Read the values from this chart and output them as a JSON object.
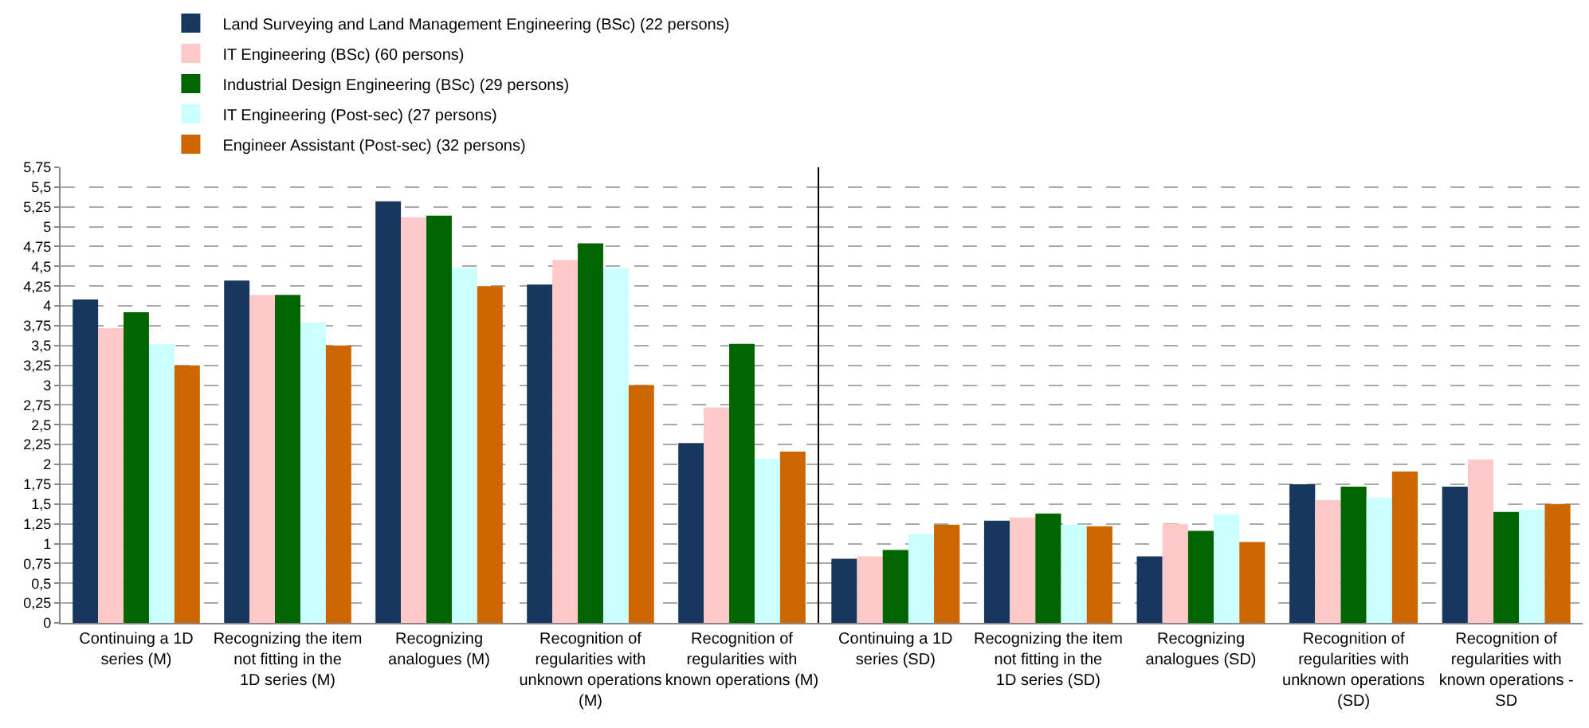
{
  "chart_data": [
    {
      "type": "bar",
      "categories": [
        "Continuing a 1D series (M)",
        "Recognizing the item not fitting in the 1D series (M)",
        "Recognizing analogues (M)",
        "Recognition of regularities with unknown operations (M)",
        "Recognition of regularities with known operations (M)"
      ],
      "series": [
        {
          "name": "Land Surveying and Land Management Engineering (BSc) (22 persons)",
          "color": "#17375e",
          "values": [
            4.08,
            4.32,
            5.32,
            4.27,
            2.27
          ]
        },
        {
          "name": "IT Engineering (BSc) (60 persons)",
          "color": "#ffc9c9",
          "values": [
            3.72,
            4.14,
            5.12,
            4.58,
            2.72
          ]
        },
        {
          "name": "Industrial Design Engineering (BSc) (29 persons)",
          "color": "#006400",
          "values": [
            3.92,
            4.14,
            5.14,
            4.79,
            3.52
          ]
        },
        {
          "name": "IT Engineering (Post-sec) (27 persons)",
          "color": "#ccffff",
          "values": [
            3.52,
            3.79,
            4.48,
            4.48,
            2.07
          ]
        },
        {
          "name": "Engineer Assistant (Post-sec) (32 persons)",
          "color": "#cc6600",
          "values": [
            3.25,
            3.5,
            4.25,
            3.0,
            2.16
          ]
        }
      ],
      "ylim": [
        0,
        5.75
      ],
      "yticks": [
        0,
        {
          "value": 0.25,
          "label": "0,25"
        },
        {
          "value": 0.5,
          "label": "0,5"
        },
        {
          "value": 0.75,
          "label": "0,75"
        },
        1,
        {
          "value": 1.25,
          "label": "1,25"
        },
        {
          "value": 1.5,
          "label": "1,5"
        },
        {
          "value": 1.75,
          "label": "1,75"
        },
        2,
        {
          "value": 2.25,
          "label": "2,25"
        },
        {
          "value": 2.5,
          "label": "2,5"
        },
        {
          "value": 2.75,
          "label": "2,75"
        },
        3,
        {
          "value": 3.25,
          "label": "3,25"
        },
        {
          "value": 3.5,
          "label": "3,5"
        },
        {
          "value": 3.75,
          "label": "3,75"
        },
        4,
        {
          "value": 4.25,
          "label": "4,25"
        },
        {
          "value": 4.5,
          "label": "4,5"
        },
        {
          "value": 4.75,
          "label": "4,75"
        },
        5,
        {
          "value": 5.25,
          "label": "5,25"
        },
        {
          "value": 5.5,
          "label": "5,5"
        },
        {
          "value": 5.75,
          "label": "5,75"
        }
      ],
      "grid": "y",
      "legend": "top"
    },
    {
      "type": "bar",
      "categories": [
        "Continuing a 1D series (SD)",
        "Recognizing the item not fitting in the 1D series (SD)",
        "Recognizing analogues (SD)",
        "Recognition of regularities with unknown operations (SD)",
        "Recognition of regularities with known operations - SD"
      ],
      "series": [
        {
          "color": "#17375e",
          "values": [
            0.81,
            1.29,
            0.84,
            1.75,
            1.72
          ]
        },
        {
          "color": "#ffc9c9",
          "values": [
            0.84,
            1.33,
            1.25,
            1.55,
            2.06
          ]
        },
        {
          "color": "#006400",
          "values": [
            0.92,
            1.38,
            1.16,
            1.72,
            1.4
          ]
        },
        {
          "color": "#ccffff",
          "values": [
            1.12,
            1.24,
            1.37,
            1.58,
            1.43
          ]
        },
        {
          "color": "#cc6600",
          "values": [
            1.24,
            1.22,
            1.02,
            1.91,
            1.5
          ]
        }
      ],
      "ylim": [
        0,
        5.75
      ],
      "yticks": [
        0,
        0.25,
        0.5,
        0.75,
        1,
        1.25,
        1.5,
        1.75,
        2,
        2.25,
        2.5,
        2.75,
        3,
        3.25,
        3.5,
        3.75,
        4,
        4.25,
        4.5,
        4.75,
        5,
        5.25,
        5.5,
        5.75
      ],
      "grid": "y",
      "tick_labels": "x"
    }
  ]
}
